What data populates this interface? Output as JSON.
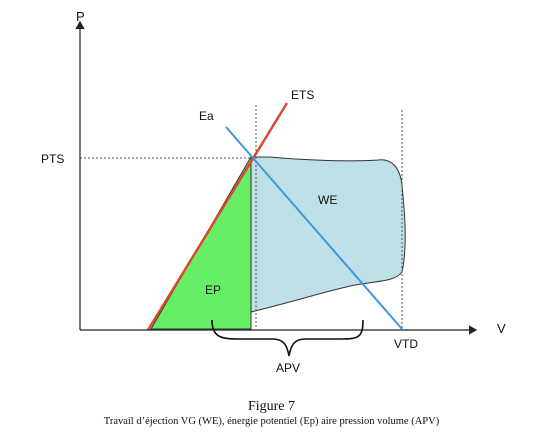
{
  "diagram": {
    "axis_y_label": "P",
    "axis_x_label": "V",
    "pts_label": "PTS",
    "ets_label": "ETS",
    "ea_label": "Ea",
    "we_label": "WE",
    "ep_label": "EP",
    "vtd_label": "VTD",
    "apv_label": "APV",
    "colors": {
      "ets_line": "#d9492e",
      "ea_line": "#3d97e0",
      "we_fill": "#bfe0e6",
      "ep_fill": "#66ee66",
      "axis": "#222222",
      "dotted": "#555555"
    }
  },
  "caption": {
    "title": "Figure 7",
    "text": "Travail d’éjection VG (WE), énergie potentiel (Ep) aire pression volume (APV)"
  }
}
